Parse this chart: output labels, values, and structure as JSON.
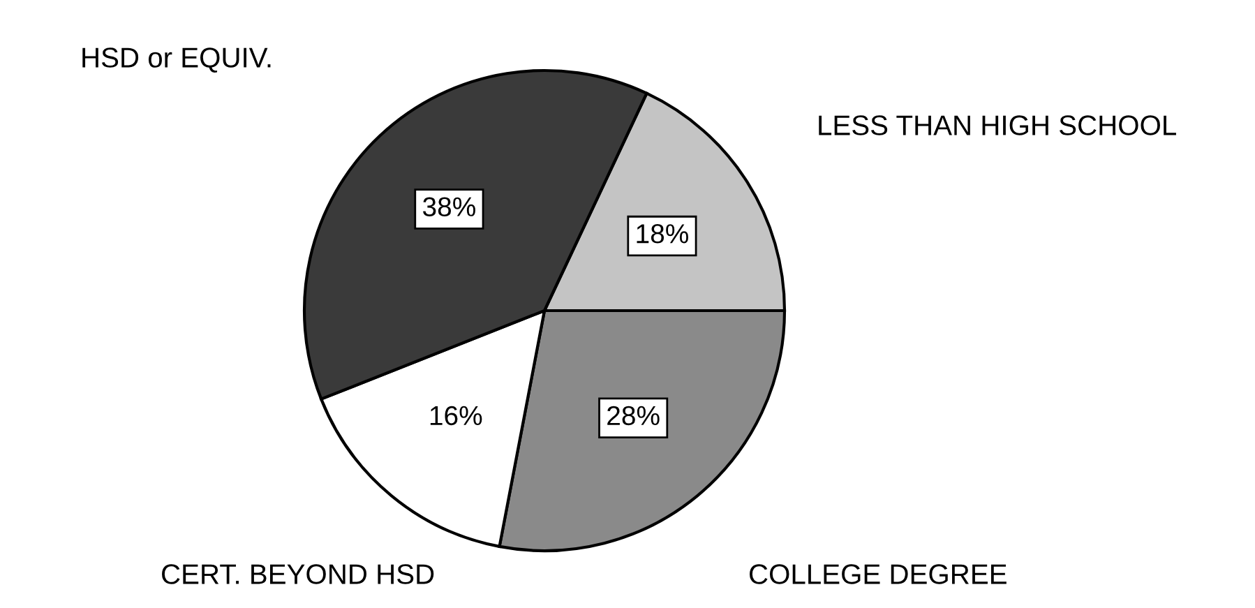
{
  "chart_data": {
    "type": "pie",
    "categories": [
      "LESS THAN HIGH SCHOOL",
      "COLLEGE DEGREE",
      "CERT. BEYOND HSD",
      "HSD or EQUIV."
    ],
    "values": [
      18,
      28,
      16,
      38
    ],
    "value_labels": [
      "18%",
      "28%",
      "16%",
      "38%"
    ],
    "colors": [
      "#c4c4c4",
      "#8a8a8a",
      "#ffffff",
      "#3a3a3a"
    ]
  }
}
